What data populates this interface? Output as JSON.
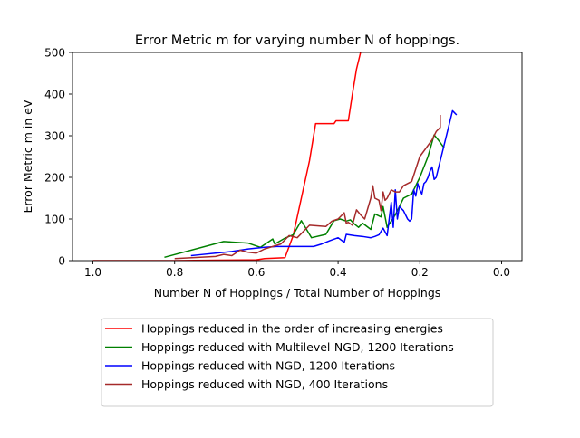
{
  "chart_data": {
    "type": "line",
    "title": "Error Metric m for varying number N of hoppings.",
    "xlabel": "Number N of Hoppings / Total Number of Hoppings",
    "ylabel": "Error Metric m in eV",
    "xlim": [
      1.05,
      -0.05
    ],
    "ylim": [
      0,
      500
    ],
    "x_inverted": true,
    "grid": false,
    "legend_position": "below",
    "x_ticks": [
      1.0,
      0.8,
      0.6,
      0.4,
      0.2,
      0.0
    ],
    "x_tick_labels": [
      "1.0",
      "0.8",
      "0.6",
      "0.4",
      "0.2",
      "0.0"
    ],
    "y_ticks": [
      0,
      100,
      200,
      300,
      400,
      500
    ],
    "y_tick_labels": [
      "0",
      "100",
      "200",
      "300",
      "400",
      "500"
    ],
    "series": [
      {
        "name": "Hoppings reduced in the order of increasing energies",
        "color": "#ff0000",
        "x": [
          1.0,
          0.9,
          0.8,
          0.7,
          0.6,
          0.58,
          0.53,
          0.51,
          0.49,
          0.47,
          0.455,
          0.42,
          0.41,
          0.405,
          0.38,
          0.375,
          0.365,
          0.355,
          0.345
        ],
        "y": [
          0,
          0,
          0,
          1,
          2,
          5,
          7,
          60,
          150,
          240,
          329,
          329,
          329,
          336,
          336,
          336,
          400,
          460,
          500
        ]
      },
      {
        "name": "Hoppings reduced with Multilevel-NGD, 1200 Iterations",
        "color": "#008000",
        "x": [
          0.825,
          0.68,
          0.62,
          0.59,
          0.56,
          0.555,
          0.53,
          0.51,
          0.49,
          0.465,
          0.43,
          0.41,
          0.395,
          0.38,
          0.37,
          0.36,
          0.35,
          0.34,
          0.32,
          0.31,
          0.295,
          0.29,
          0.28,
          0.26,
          0.24,
          0.22,
          0.2,
          0.18,
          0.165,
          0.155,
          0.14
        ],
        "y": [
          8,
          46,
          42,
          32,
          52,
          40,
          54,
          62,
          96,
          55,
          63,
          96,
          100,
          95,
          98,
          88,
          80,
          90,
          75,
          112,
          105,
          130,
          80,
          110,
          150,
          160,
          200,
          250,
          302,
          290,
          270
        ]
      },
      {
        "name": "Hoppings reduced with NGD, 1200 Iterations",
        "color": "#0000ff",
        "x": [
          0.76,
          0.74,
          0.7,
          0.66,
          0.62,
          0.58,
          0.55,
          0.5,
          0.46,
          0.44,
          0.42,
          0.4,
          0.385,
          0.38,
          0.36,
          0.34,
          0.32,
          0.31,
          0.3,
          0.29,
          0.28,
          0.27,
          0.265,
          0.26,
          0.255,
          0.25,
          0.24,
          0.23,
          0.225,
          0.22,
          0.215,
          0.21,
          0.205,
          0.2,
          0.195,
          0.19,
          0.185,
          0.18,
          0.175,
          0.17,
          0.165,
          0.16,
          0.15,
          0.14,
          0.13,
          0.12,
          0.115,
          0.11
        ],
        "y": [
          12,
          14,
          18,
          22,
          28,
          32,
          34,
          34,
          34,
          40,
          48,
          55,
          44,
          63,
          60,
          58,
          55,
          58,
          62,
          78,
          60,
          140,
          80,
          170,
          100,
          130,
          120,
          100,
          95,
          100,
          170,
          155,
          185,
          170,
          160,
          185,
          190,
          200,
          215,
          225,
          195,
          200,
          240,
          280,
          320,
          360,
          355,
          350
        ]
      },
      {
        "name": "Hoppings reduced with NGD, 400 Iterations",
        "color": "#a52a2a",
        "x": [
          0.8,
          0.7,
          0.68,
          0.66,
          0.64,
          0.62,
          0.6,
          0.58,
          0.54,
          0.52,
          0.5,
          0.47,
          0.43,
          0.415,
          0.4,
          0.385,
          0.38,
          0.375,
          0.365,
          0.355,
          0.345,
          0.335,
          0.32,
          0.315,
          0.31,
          0.3,
          0.295,
          0.29,
          0.285,
          0.28,
          0.27,
          0.26,
          0.25,
          0.24,
          0.22,
          0.2,
          0.17,
          0.16,
          0.15,
          0.15
        ],
        "y": [
          5,
          10,
          15,
          12,
          25,
          20,
          18,
          28,
          40,
          60,
          55,
          85,
          82,
          95,
          100,
          115,
          90,
          92,
          85,
          122,
          110,
          100,
          150,
          180,
          150,
          145,
          120,
          165,
          145,
          150,
          170,
          165,
          165,
          180,
          190,
          250,
          290,
          310,
          320,
          350
        ]
      }
    ]
  }
}
